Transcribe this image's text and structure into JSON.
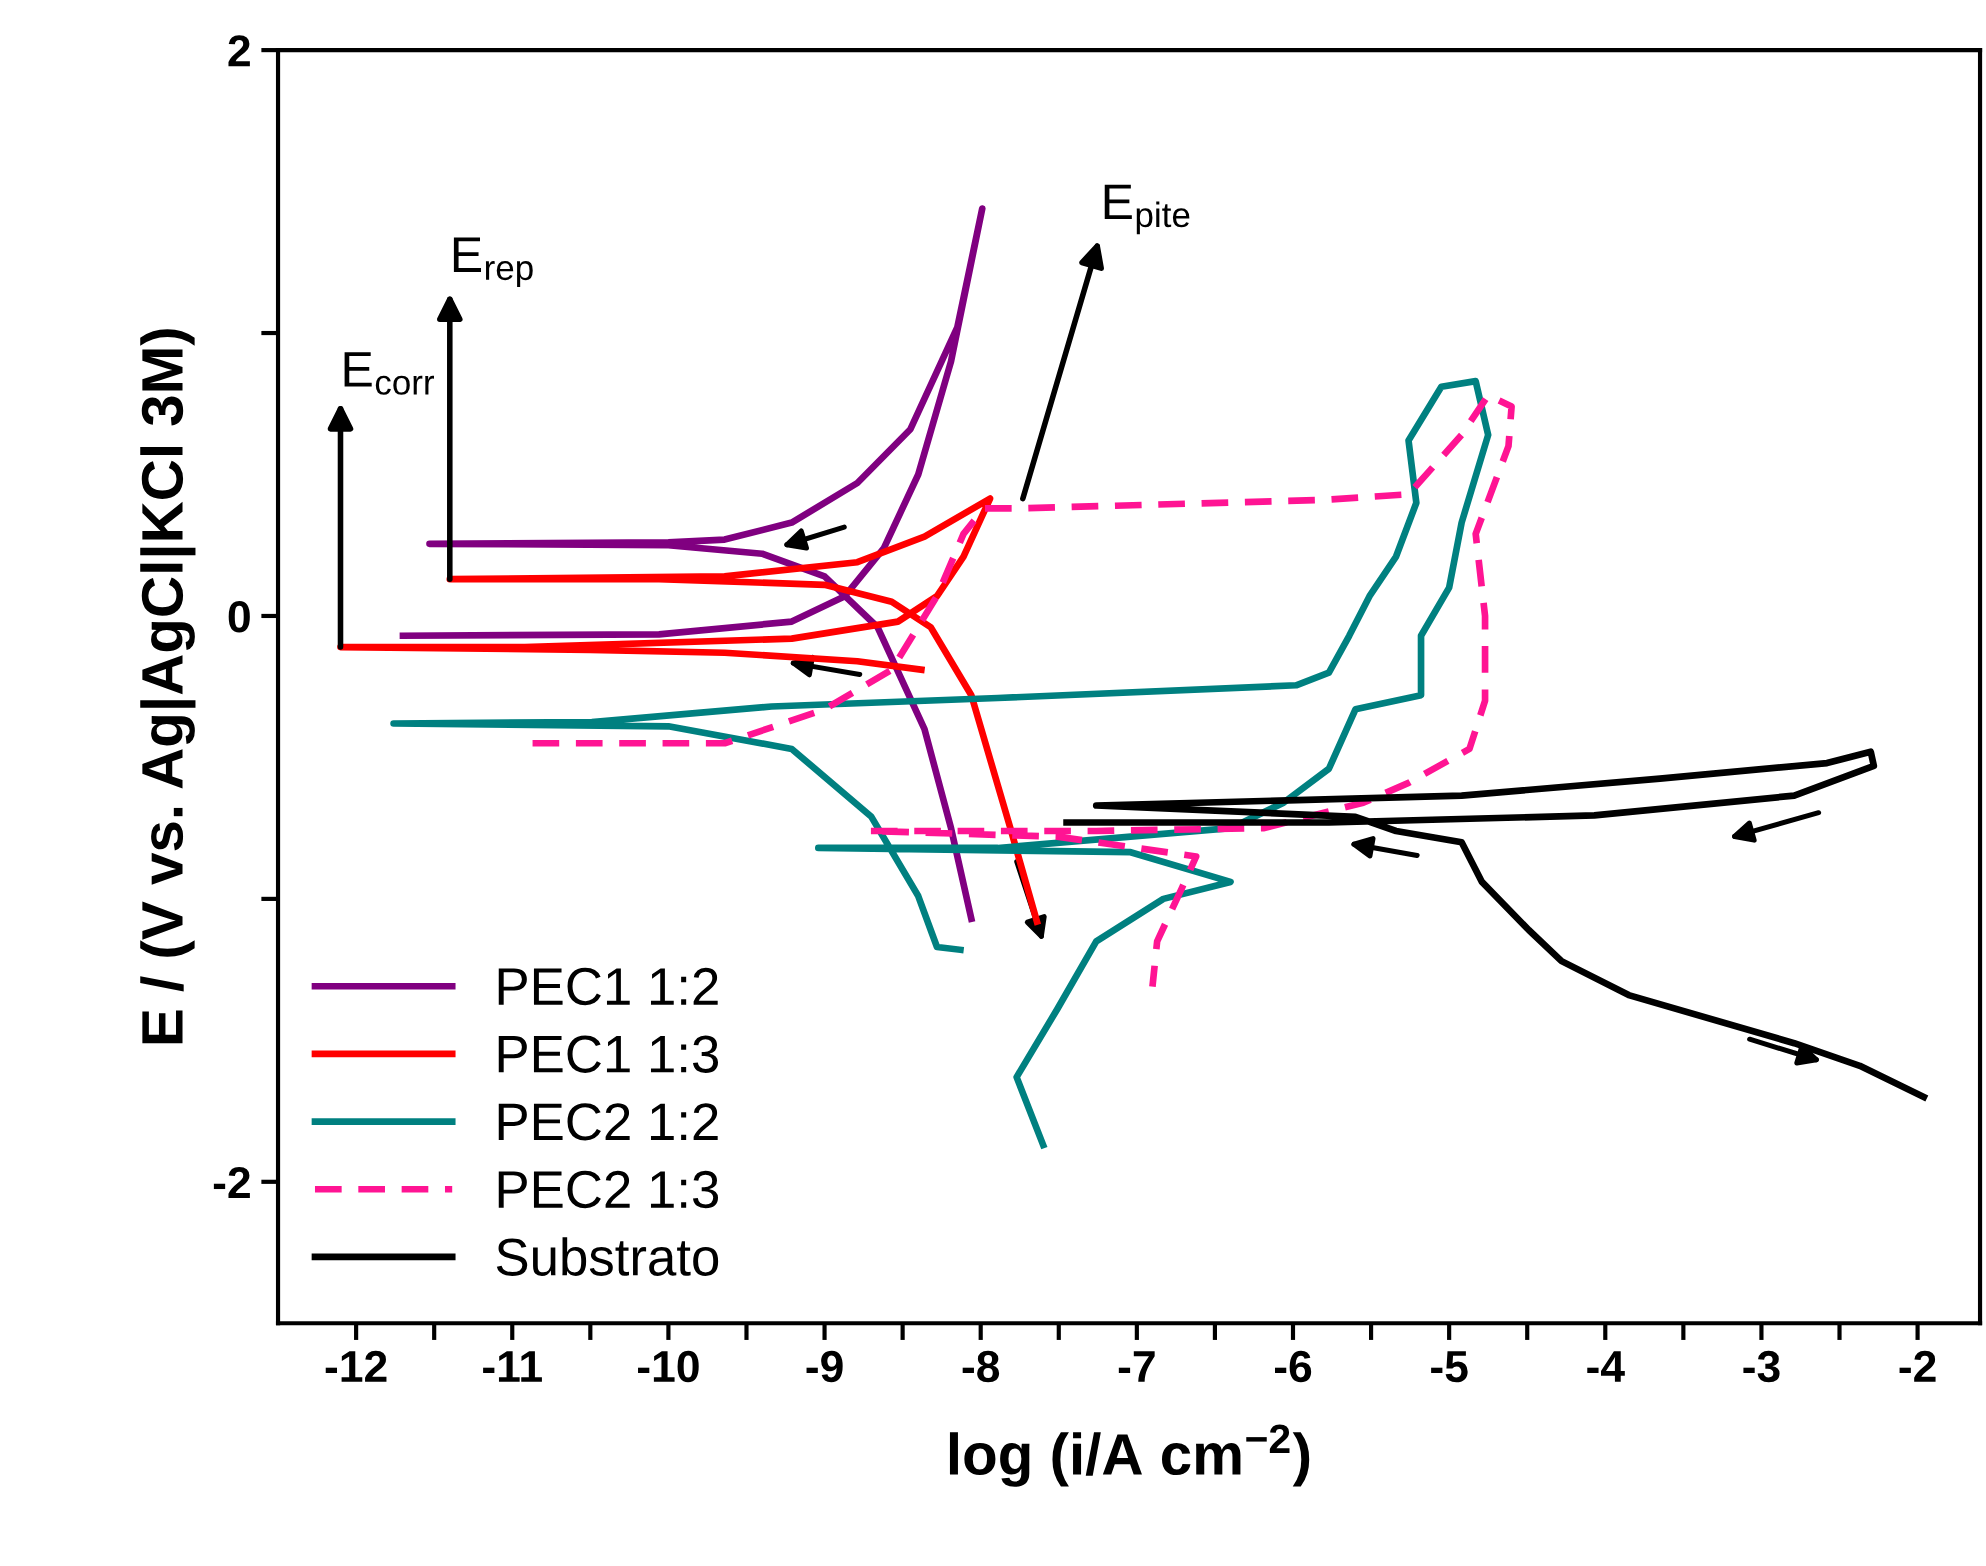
{
  "chart_data": {
    "type": "line",
    "xlabel": "log (i/A cm$^{−2}$)",
    "ylabel": "E / (V vs. Ag|AgCl|KCl 3M)",
    "xlim": [
      -12.5,
      -1.6
    ],
    "ylim": [
      -2.5,
      2
    ],
    "xticks": [
      -12,
      {
        "value": -11.5,
        "label": null
      },
      -11,
      {
        "value": -10.5,
        "label": null
      },
      -10,
      {
        "value": -9.5,
        "label": null
      },
      -9,
      {
        "value": -8.5,
        "label": null
      },
      -8,
      {
        "value": -7.5,
        "label": null
      },
      -7,
      {
        "value": -6.5,
        "label": null
      },
      -6,
      {
        "value": -5.5,
        "label": null
      },
      -5,
      {
        "value": -4.5,
        "label": null
      },
      -4,
      {
        "value": -3.5,
        "label": null
      },
      -3,
      {
        "value": -2.5,
        "label": null
      },
      -2
    ],
    "yticks": [
      {
        "value": -1,
        "label": null
      },
      -2,
      0,
      {
        "value": 1,
        "label": null
      },
      2
    ],
    "grid": false,
    "legend": "bottom left",
    "marker": "none",
    "annotations": [
      {
        "text": "E$_{corr}$",
        "x": -12.1,
        "y": -0.11
      },
      {
        "text": "E$_{rep}$",
        "x": -11.4,
        "y": 0.13
      },
      {
        "text": "E$_{pite}$",
        "x": -7.73,
        "y": 0.415
      }
    ],
    "series": [
      {
        "name": "PEC1 1:2",
        "color": "#800080",
        "line_style": "solid",
        "x": [
          -8.06,
          -8.19,
          -8.36,
          -8.66,
          -9.0,
          -9.4,
          -10.0,
          -11.53,
          -10.0,
          -9.64,
          -9.21,
          -8.79,
          -8.45,
          -8.15,
          -7.99,
          -8.19,
          -8.4,
          -8.62,
          -8.87,
          -9.21,
          -10.06,
          -11.7
        ],
        "values": [
          -1.07,
          -0.75,
          -0.4,
          -0.04,
          0.14,
          0.22,
          0.25,
          0.255,
          0.26,
          0.27,
          0.33,
          0.47,
          0.66,
          1.02,
          1.44,
          0.9,
          0.5,
          0.24,
          0.07,
          -0.02,
          -0.065,
          -0.07
        ]
      },
      {
        "name": "PEC1 1:3",
        "color": "#ff0000",
        "line_style": "solid",
        "x": [
          -7.64,
          -7.81,
          -8.06,
          -8.32,
          -8.57,
          -9.0,
          -10.06,
          -11.4,
          -9.64,
          -8.79,
          -8.36,
          -7.94,
          -8.11,
          -8.28,
          -8.53,
          -9.21,
          -10.92,
          -12.1,
          -10.5,
          -9.64,
          -8.79,
          -8.38
        ],
        "values": [
          -1.08,
          -0.75,
          -0.28,
          -0.04,
          0.05,
          0.11,
          0.13,
          0.13,
          0.14,
          0.19,
          0.28,
          0.415,
          0.21,
          0.07,
          -0.02,
          -0.08,
          -0.11,
          -0.11,
          -0.12,
          -0.13,
          -0.16,
          -0.19
        ]
      },
      {
        "name": "PEC2 1:2",
        "color": "#008080",
        "line_style": "solid",
        "x": [
          -8.13,
          -8.28,
          -8.4,
          -8.7,
          -9.21,
          -10.0,
          -11.76,
          -10.49,
          -9.34,
          -7.89,
          -5.98,
          -5.77,
          -5.64,
          -5.51,
          -5.34,
          -5.21,
          -5.26,
          -5.05,
          -4.83,
          -4.75,
          -4.92,
          -5.0,
          -5.18,
          -5.18,
          -5.6,
          -5.77,
          -6.06,
          -6.4,
          -7.89,
          -9.04,
          -7.04,
          -6.4,
          -6.83,
          -7.26,
          -7.51,
          -7.77,
          -7.6
        ],
        "values": [
          -1.18,
          -1.17,
          -0.99,
          -0.71,
          -0.47,
          -0.39,
          -0.38,
          -0.375,
          -0.32,
          -0.29,
          -0.245,
          -0.2,
          -0.07,
          0.07,
          0.21,
          0.4,
          0.62,
          0.81,
          0.83,
          0.64,
          0.33,
          0.1,
          -0.07,
          -0.28,
          -0.33,
          -0.54,
          -0.66,
          -0.75,
          -0.82,
          -0.82,
          -0.835,
          -0.94,
          -1.0,
          -1.15,
          -1.39,
          -1.63,
          -1.87
        ]
      },
      {
        "name": "PEC2 1:3",
        "color": "#ff1493",
        "line_style": "dashed",
        "x": [
          -10.87,
          -9.64,
          -9.0,
          -8.57,
          -8.28,
          -8.11,
          -7.98,
          -7.77,
          -5.81,
          -5.26,
          -4.92,
          -4.75,
          -4.6,
          -4.62,
          -4.83,
          -4.77,
          -4.77,
          -4.87,
          -5.26,
          -5.55,
          -6.19,
          -7.26,
          -8.72,
          -7.51,
          -6.62,
          -6.71,
          -6.87,
          -6.9
        ],
        "values": [
          -0.45,
          -0.45,
          -0.33,
          -0.19,
          0.07,
          0.29,
          0.38,
          0.38,
          0.41,
          0.43,
          0.64,
          0.78,
          0.74,
          0.6,
          0.29,
          0.0,
          -0.3,
          -0.47,
          -0.59,
          -0.66,
          -0.75,
          -0.76,
          -0.76,
          -0.78,
          -0.85,
          -0.96,
          -1.15,
          -1.31
        ]
      },
      {
        "name": "Substrato",
        "color": "#000000",
        "line_style": "solid",
        "x": [
          -1.96,
          -2.37,
          -2.79,
          -3.85,
          -4.28,
          -4.49,
          -4.79,
          -4.92,
          -5.34,
          -5.6,
          -7.26,
          -4.92,
          -3.65,
          -2.58,
          -2.3,
          -2.28,
          -2.79,
          -4.07,
          -5.77,
          -7.45
        ],
        "values": [
          -1.7,
          -1.59,
          -1.51,
          -1.34,
          -1.22,
          -1.11,
          -0.94,
          -0.8,
          -0.76,
          -0.71,
          -0.67,
          -0.635,
          -0.575,
          -0.52,
          -0.48,
          -0.53,
          -0.635,
          -0.705,
          -0.73,
          -0.73
        ]
      }
    ]
  }
}
